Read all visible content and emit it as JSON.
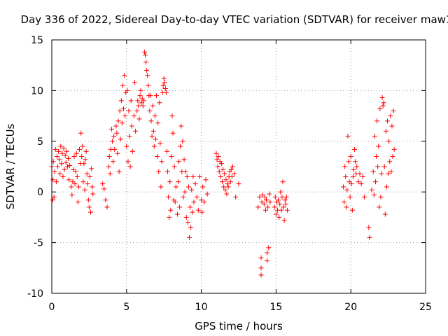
{
  "chart_data": {
    "type": "scatter",
    "title": "Day 336 of 2022, Sidereal Day-to-day VTEC variation (SDTVAR) for receiver maw1",
    "xlabel": "GPS time / hours",
    "ylabel": "SDTVAR / TECUs",
    "xlim": [
      0,
      25
    ],
    "ylim": [
      -10,
      15
    ],
    "x_ticks": [
      0,
      5,
      10,
      15,
      20,
      25
    ],
    "y_ticks": [
      -10,
      -5,
      0,
      5,
      10,
      15
    ],
    "grid": true,
    "marker": "+",
    "color": "#ff0000",
    "series": [
      {
        "name": "maw1",
        "points": [
          [
            0.0,
            2.5
          ],
          [
            0.05,
            -0.8
          ],
          [
            0.08,
            1.2
          ],
          [
            0.1,
            3.0
          ],
          [
            0.15,
            -0.5
          ],
          [
            0.2,
            2.0
          ],
          [
            0.25,
            4.2
          ],
          [
            0.3,
            1.0
          ],
          [
            0.35,
            3.5
          ],
          [
            0.4,
            2.5
          ],
          [
            0.45,
            4.0
          ],
          [
            0.5,
            3.2
          ],
          [
            0.55,
            1.8
          ],
          [
            0.6,
            4.5
          ],
          [
            0.65,
            2.8
          ],
          [
            0.7,
            3.8
          ],
          [
            0.75,
            1.5
          ],
          [
            0.8,
            4.3
          ],
          [
            0.85,
            2.2
          ],
          [
            0.9,
            3.6
          ],
          [
            0.95,
            2.9
          ],
          [
            1.0,
            4.0
          ],
          [
            1.05,
            2.5
          ],
          [
            1.1,
            3.3
          ],
          [
            1.15,
            1.2
          ],
          [
            1.2,
            2.6
          ],
          [
            1.3,
            0.5
          ],
          [
            1.35,
            -0.3
          ],
          [
            1.4,
            1.0
          ],
          [
            1.45,
            2.2
          ],
          [
            1.5,
            3.5
          ],
          [
            1.55,
            0.8
          ],
          [
            1.6,
            2.0
          ],
          [
            1.65,
            3.8
          ],
          [
            1.7,
            1.5
          ],
          [
            1.75,
            -1.0
          ],
          [
            1.8,
            0.5
          ],
          [
            1.85,
            4.2
          ],
          [
            1.9,
            2.8
          ],
          [
            1.95,
            5.8
          ],
          [
            2.0,
            3.5
          ],
          [
            2.05,
            4.5
          ],
          [
            2.1,
            1.0
          ],
          [
            2.15,
            2.8
          ],
          [
            2.2,
            0.2
          ],
          [
            2.25,
            3.2
          ],
          [
            2.3,
            4.0
          ],
          [
            2.35,
            1.8
          ],
          [
            2.4,
            0.8
          ],
          [
            2.45,
            -0.8
          ],
          [
            2.5,
            -1.5
          ],
          [
            2.55,
            1.5
          ],
          [
            2.6,
            -2.0
          ],
          [
            2.65,
            2.3
          ],
          [
            2.7,
            0.5
          ],
          [
            2.75,
            -0.2
          ],
          [
            3.4,
            0.8
          ],
          [
            3.5,
            0.3
          ],
          [
            3.6,
            -0.8
          ],
          [
            3.7,
            -1.5
          ],
          [
            3.8,
            2.5
          ],
          [
            3.85,
            3.5
          ],
          [
            3.9,
            1.8
          ],
          [
            3.95,
            4.2
          ],
          [
            4.0,
            6.2
          ],
          [
            4.05,
            5.0
          ],
          [
            4.1,
            3.0
          ],
          [
            4.15,
            5.5
          ],
          [
            4.2,
            4.2
          ],
          [
            4.3,
            6.5
          ],
          [
            4.35,
            5.8
          ],
          [
            4.4,
            3.8
          ],
          [
            4.45,
            7.0
          ],
          [
            4.5,
            2.0
          ],
          [
            4.55,
            8.0
          ],
          [
            4.6,
            5.2
          ],
          [
            4.65,
            9.0
          ],
          [
            4.7,
            6.8
          ],
          [
            4.75,
            10.5
          ],
          [
            4.8,
            8.2
          ],
          [
            4.85,
            11.5
          ],
          [
            4.9,
            7.5
          ],
          [
            4.95,
            9.8
          ],
          [
            5.0,
            4.5
          ],
          [
            5.05,
            10.0
          ],
          [
            5.1,
            3.0
          ],
          [
            5.15,
            8.0
          ],
          [
            5.2,
            5.5
          ],
          [
            5.25,
            2.5
          ],
          [
            5.3,
            9.0
          ],
          [
            5.35,
            6.5
          ],
          [
            5.4,
            4.0
          ],
          [
            5.5,
            7.5
          ],
          [
            5.55,
            10.8
          ],
          [
            5.6,
            6.0
          ],
          [
            5.7,
            8.0
          ],
          [
            5.75,
            9.0
          ],
          [
            5.8,
            8.5
          ],
          [
            5.85,
            7.2
          ],
          [
            5.9,
            9.5
          ],
          [
            5.95,
            10.0
          ],
          [
            6.0,
            8.8
          ],
          [
            6.05,
            9.2
          ],
          [
            6.1,
            8.5
          ],
          [
            6.15,
            9.0
          ],
          [
            6.2,
            13.8
          ],
          [
            6.25,
            13.5
          ],
          [
            6.3,
            12.8
          ],
          [
            6.35,
            12.0
          ],
          [
            6.4,
            11.5
          ],
          [
            6.45,
            10.5
          ],
          [
            6.5,
            9.5
          ],
          [
            6.55,
            8.0
          ],
          [
            6.6,
            9.5
          ],
          [
            6.65,
            7.0
          ],
          [
            6.7,
            5.5
          ],
          [
            6.75,
            8.5
          ],
          [
            6.8,
            6.0
          ],
          [
            6.85,
            4.5
          ],
          [
            6.9,
            7.5
          ],
          [
            6.95,
            5.2
          ],
          [
            7.0,
            9.5
          ],
          [
            7.05,
            3.5
          ],
          [
            7.1,
            6.8
          ],
          [
            7.15,
            2.0
          ],
          [
            7.2,
            8.8
          ],
          [
            7.25,
            4.8
          ],
          [
            7.3,
            0.5
          ],
          [
            7.35,
            3.0
          ],
          [
            7.4,
            9.8
          ],
          [
            7.45,
            10.5
          ],
          [
            7.5,
            11.2
          ],
          [
            7.55,
            10.8
          ],
          [
            7.6,
            10.2
          ],
          [
            7.65,
            9.8
          ],
          [
            7.7,
            4.0
          ],
          [
            7.75,
            2.0
          ],
          [
            7.8,
            -0.5
          ],
          [
            7.85,
            -2.5
          ],
          [
            7.9,
            1.0
          ],
          [
            7.95,
            -1.8
          ],
          [
            8.0,
            3.5
          ],
          [
            8.05,
            7.5
          ],
          [
            8.1,
            5.8
          ],
          [
            8.15,
            -0.8
          ],
          [
            8.2,
            2.5
          ],
          [
            8.25,
            -1.0
          ],
          [
            8.3,
            0.5
          ],
          [
            8.4,
            -2.2
          ],
          [
            8.45,
            1.0
          ],
          [
            8.5,
            3.0
          ],
          [
            8.55,
            -1.5
          ],
          [
            8.6,
            4.5
          ],
          [
            8.65,
            6.5
          ],
          [
            8.7,
            2.0
          ],
          [
            8.75,
            5.0
          ],
          [
            8.8,
            -0.5
          ],
          [
            8.85,
            3.2
          ],
          [
            8.9,
            0.0
          ],
          [
            8.95,
            2.0
          ],
          [
            9.0,
            -2.5
          ],
          [
            9.05,
            1.5
          ],
          [
            9.1,
            -3.0
          ],
          [
            9.15,
            0.5
          ],
          [
            9.2,
            -4.5
          ],
          [
            9.25,
            -1.5
          ],
          [
            9.3,
            -3.5
          ],
          [
            9.35,
            0.2
          ],
          [
            9.4,
            -2.0
          ],
          [
            9.45,
            1.5
          ],
          [
            9.5,
            -1.0
          ],
          [
            9.6,
            0.8
          ],
          [
            9.7,
            -0.5
          ],
          [
            9.8,
            -1.8
          ],
          [
            9.9,
            1.5
          ],
          [
            10.0,
            -0.8
          ],
          [
            10.05,
            -2.0
          ],
          [
            10.1,
            0.5
          ],
          [
            10.2,
            -1.0
          ],
          [
            10.3,
            1.2
          ],
          [
            10.4,
            -0.2
          ],
          [
            11.0,
            3.8
          ],
          [
            11.05,
            3.2
          ],
          [
            11.1,
            2.5
          ],
          [
            11.15,
            3.5
          ],
          [
            11.2,
            2.0
          ],
          [
            11.25,
            3.0
          ],
          [
            11.3,
            1.5
          ],
          [
            11.35,
            2.8
          ],
          [
            11.4,
            1.0
          ],
          [
            11.45,
            2.2
          ],
          [
            11.5,
            0.5
          ],
          [
            11.55,
            1.8
          ],
          [
            11.6,
            0.2
          ],
          [
            11.65,
            1.2
          ],
          [
            11.7,
            -0.2
          ],
          [
            11.75,
            0.8
          ],
          [
            11.8,
            0.5
          ],
          [
            11.85,
            1.5
          ],
          [
            11.9,
            2.0
          ],
          [
            11.95,
            1.0
          ],
          [
            12.0,
            2.2
          ],
          [
            12.05,
            1.5
          ],
          [
            12.1,
            2.5
          ],
          [
            12.2,
            1.8
          ],
          [
            12.3,
            -0.5
          ],
          [
            12.5,
            0.8
          ],
          [
            13.8,
            -1.5
          ],
          [
            13.9,
            -0.5
          ],
          [
            14.0,
            -6.5
          ],
          [
            14.0,
            -7.5
          ],
          [
            14.0,
            -8.2
          ],
          [
            14.05,
            -1.0
          ],
          [
            14.1,
            -0.3
          ],
          [
            14.2,
            -1.2
          ],
          [
            14.25,
            -0.5
          ],
          [
            14.3,
            -1.8
          ],
          [
            14.35,
            -0.8
          ],
          [
            14.4,
            -6.0
          ],
          [
            14.4,
            -6.8
          ],
          [
            14.45,
            -1.5
          ],
          [
            14.5,
            -5.5
          ],
          [
            14.55,
            -0.2
          ],
          [
            14.6,
            -1.0
          ],
          [
            14.9,
            -1.5
          ],
          [
            14.95,
            -0.5
          ],
          [
            15.0,
            -2.2
          ],
          [
            15.05,
            -1.0
          ],
          [
            15.1,
            -1.8
          ],
          [
            15.15,
            -0.8
          ],
          [
            15.2,
            -2.5
          ],
          [
            15.25,
            -1.2
          ],
          [
            15.3,
            0.0
          ],
          [
            15.35,
            -1.8
          ],
          [
            15.4,
            -0.5
          ],
          [
            15.45,
            1.0
          ],
          [
            15.5,
            -1.5
          ],
          [
            15.55,
            -2.8
          ],
          [
            15.6,
            -0.8
          ],
          [
            15.65,
            -1.2
          ],
          [
            15.7,
            -0.5
          ],
          [
            15.75,
            -1.8
          ],
          [
            19.5,
            0.5
          ],
          [
            19.55,
            -1.0
          ],
          [
            19.6,
            2.5
          ],
          [
            19.65,
            1.5
          ],
          [
            19.7,
            -1.5
          ],
          [
            19.75,
            0.2
          ],
          [
            19.8,
            5.5
          ],
          [
            19.85,
            3.0
          ],
          [
            19.9,
            1.0
          ],
          [
            19.95,
            -0.5
          ],
          [
            20.0,
            3.5
          ],
          [
            20.05,
            0.8
          ],
          [
            20.1,
            -1.8
          ],
          [
            20.15,
            1.5
          ],
          [
            20.2,
            2.2
          ],
          [
            20.25,
            4.2
          ],
          [
            20.3,
            3.0
          ],
          [
            20.35,
            1.8
          ],
          [
            20.4,
            2.5
          ],
          [
            20.5,
            1.0
          ],
          [
            20.6,
            1.8
          ],
          [
            20.7,
            0.8
          ],
          [
            20.8,
            1.5
          ],
          [
            20.9,
            -0.5
          ],
          [
            21.2,
            -3.5
          ],
          [
            21.25,
            -4.5
          ],
          [
            21.4,
            0.2
          ],
          [
            21.5,
            2.0
          ],
          [
            21.55,
            -0.3
          ],
          [
            21.6,
            5.5
          ],
          [
            21.65,
            1.0
          ],
          [
            21.7,
            3.5
          ],
          [
            21.75,
            7.0
          ],
          [
            21.8,
            2.5
          ],
          [
            21.85,
            4.5
          ],
          [
            21.9,
            -1.5
          ],
          [
            21.95,
            8.2
          ],
          [
            22.0,
            -0.5
          ],
          [
            22.05,
            1.8
          ],
          [
            22.1,
            9.3
          ],
          [
            22.15,
            8.5
          ],
          [
            22.2,
            8.8
          ],
          [
            22.25,
            2.5
          ],
          [
            22.3,
            -2.2
          ],
          [
            22.35,
            6.0
          ],
          [
            22.4,
            0.5
          ],
          [
            22.45,
            7.0
          ],
          [
            22.5,
            1.8
          ],
          [
            22.55,
            5.0
          ],
          [
            22.6,
            3.0
          ],
          [
            22.65,
            7.5
          ],
          [
            22.7,
            2.0
          ],
          [
            22.75,
            6.5
          ],
          [
            22.8,
            3.5
          ],
          [
            22.85,
            8.0
          ],
          [
            22.9,
            4.2
          ]
        ]
      }
    ]
  }
}
